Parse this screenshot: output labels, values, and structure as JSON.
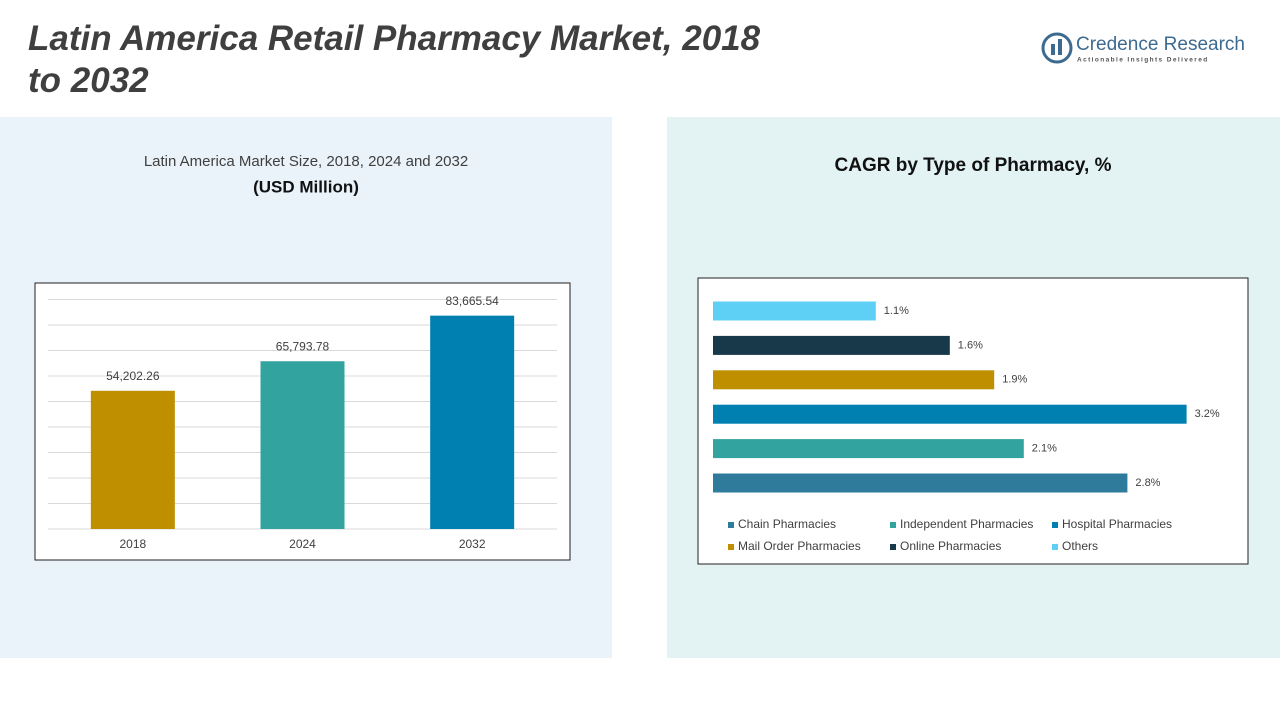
{
  "page_title": "Latin America Retail Pharmacy Market, 2018 to 2032",
  "brand": {
    "name": "Credence Research",
    "tagline": "Actionable Insights Delivered"
  },
  "chart_data": [
    {
      "type": "bar",
      "title": "Latin America Market Size, 2018, 2024 and 2032",
      "subtitle": "(USD Million)",
      "categories": [
        "2018",
        "2024",
        "2032"
      ],
      "values": [
        54202.26,
        65793.78,
        83665.54
      ],
      "value_labels": [
        "54,202.26",
        "65,793.78",
        "83,665.54"
      ],
      "colors": [
        "#c08f00",
        "#33a3a0",
        "#0080b0"
      ],
      "ylim": [
        0,
        90000
      ],
      "yticks": [
        0,
        10000,
        20000,
        30000,
        40000,
        50000,
        60000,
        70000,
        80000,
        90000
      ],
      "grid": true
    },
    {
      "type": "hbar",
      "title": "CAGR by Type of Pharmacy, %",
      "categories": [
        "Chain Pharmacies",
        "Independent Pharmacies",
        "Hospital Pharmacies",
        "Mail Order Pharmacies",
        "Online Pharmacies",
        "Others"
      ],
      "values": [
        2.8,
        2.1,
        3.2,
        1.9,
        1.6,
        1.1
      ],
      "value_labels": [
        "2.8%",
        "2.1%",
        "3.2%",
        "1.9%",
        "1.6%",
        "1.1%"
      ],
      "colors": [
        "#2e7b9b",
        "#33a3a0",
        "#0080b0",
        "#c08f00",
        "#17394a",
        "#5fd0f5"
      ],
      "xlim": [
        0,
        3.5
      ],
      "legend": "bottom"
    }
  ]
}
